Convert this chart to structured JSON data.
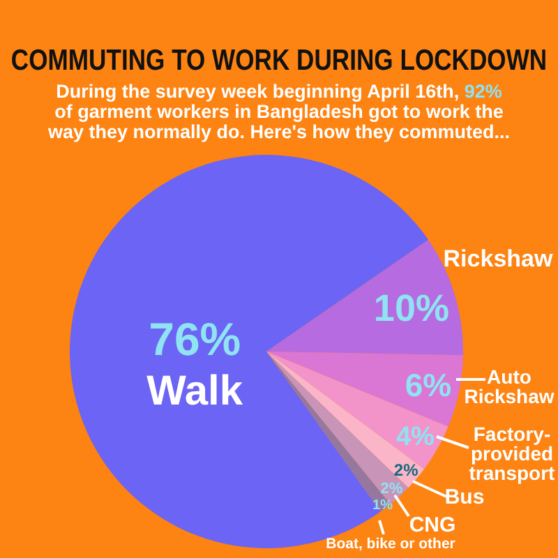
{
  "chart_data": {
    "type": "pie",
    "title": "COMMUTING TO WORK DURING LOCKDOWN",
    "subtitle": "During the survey week beginning April 16th, 92% of garment workers in Bangladesh got to work the way they normally do. Here's how they commuted...",
    "categories": [
      "Walk",
      "Rickshaw",
      "Auto Rickshaw",
      "Factory-provided transport",
      "Bus",
      "CNG",
      "Boat, bike or other"
    ],
    "values": [
      76,
      10,
      6,
      4,
      2,
      2,
      1
    ],
    "value_labels": [
      "76%",
      "10%",
      "6%",
      "4%",
      "2%",
      "2%",
      "1%"
    ],
    "colors": [
      "#6c64f4",
      "#b66be0",
      "#da76d3",
      "#f293c9",
      "#fbb5c9",
      "#c894b8",
      "#96789f"
    ]
  }
}
